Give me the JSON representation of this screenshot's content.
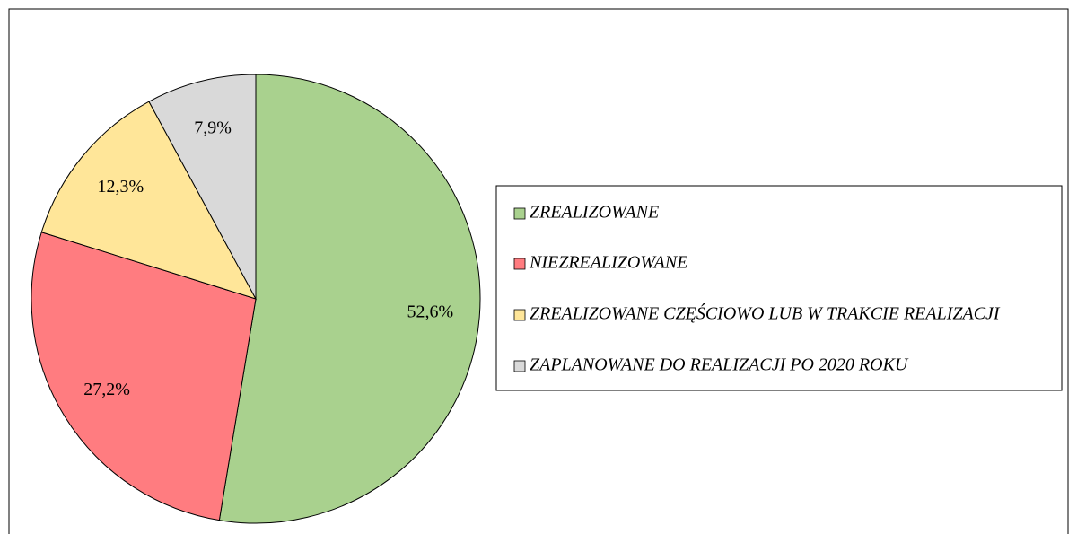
{
  "chart_data": {
    "type": "pie",
    "categories": [
      "ZREALIZOWANE",
      "NIEZREALIZOWANE",
      "ZREALIZOWANE CZĘŚCIOWO LUB W TRAKCIE REALIZACJI",
      "ZAPLANOWANE DO REALIZACJI PO 2020 ROKU"
    ],
    "values": [
      52.6,
      27.2,
      12.3,
      7.9
    ],
    "value_labels": [
      "52,6%",
      "27,2%",
      "12,3%",
      "7,9%"
    ],
    "colors": [
      "#a9d18e",
      "#ff7c80",
      "#ffe699",
      "#d9d9d9"
    ],
    "legend": "right"
  }
}
